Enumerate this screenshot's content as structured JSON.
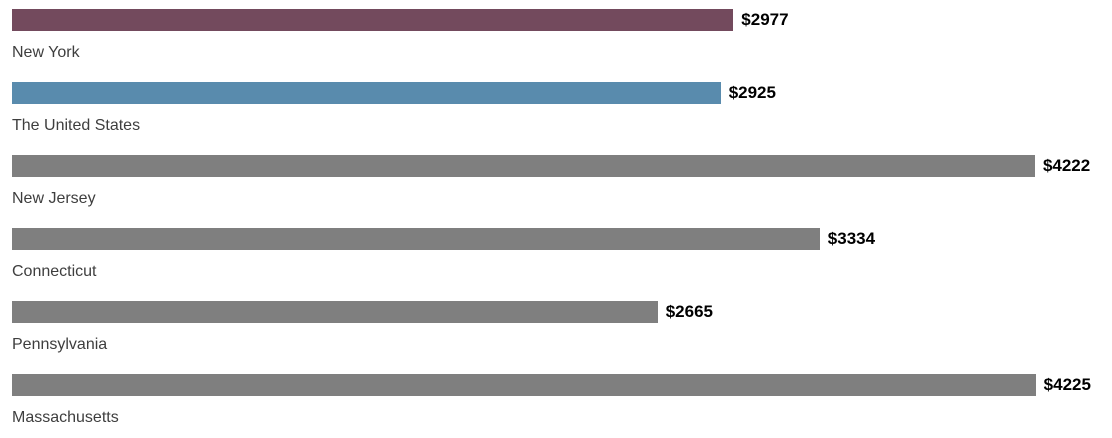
{
  "chart_data": {
    "type": "bar",
    "orientation": "horizontal",
    "categories": [
      "New York",
      "The United States",
      "New Jersey",
      "Connecticut",
      "Pennsylvania",
      "Massachusetts"
    ],
    "values": [
      2977,
      2925,
      4222,
      3334,
      2665,
      4225
    ],
    "value_labels": [
      "$2977",
      "$2925",
      "$4222",
      "$3334",
      "$2665",
      "$4225"
    ],
    "value_prefix": "$",
    "bar_colors": [
      "#734a5d",
      "#598bad",
      "#7f7f7f",
      "#7f7f7f",
      "#7f7f7f",
      "#7f7f7f"
    ],
    "xlim": [
      0,
      4540
    ],
    "grid": "off",
    "legend": "none",
    "value_label_position": "right-of-bar",
    "category_label_position": "below-bar"
  },
  "colors": {
    "bar_new_york": "#734a5d",
    "bar_united_states": "#598bad",
    "bar_default_gray": "#7f7f7f",
    "value_text": "#000000",
    "category_text": "#3e3e3e",
    "background": "#ffffff"
  }
}
